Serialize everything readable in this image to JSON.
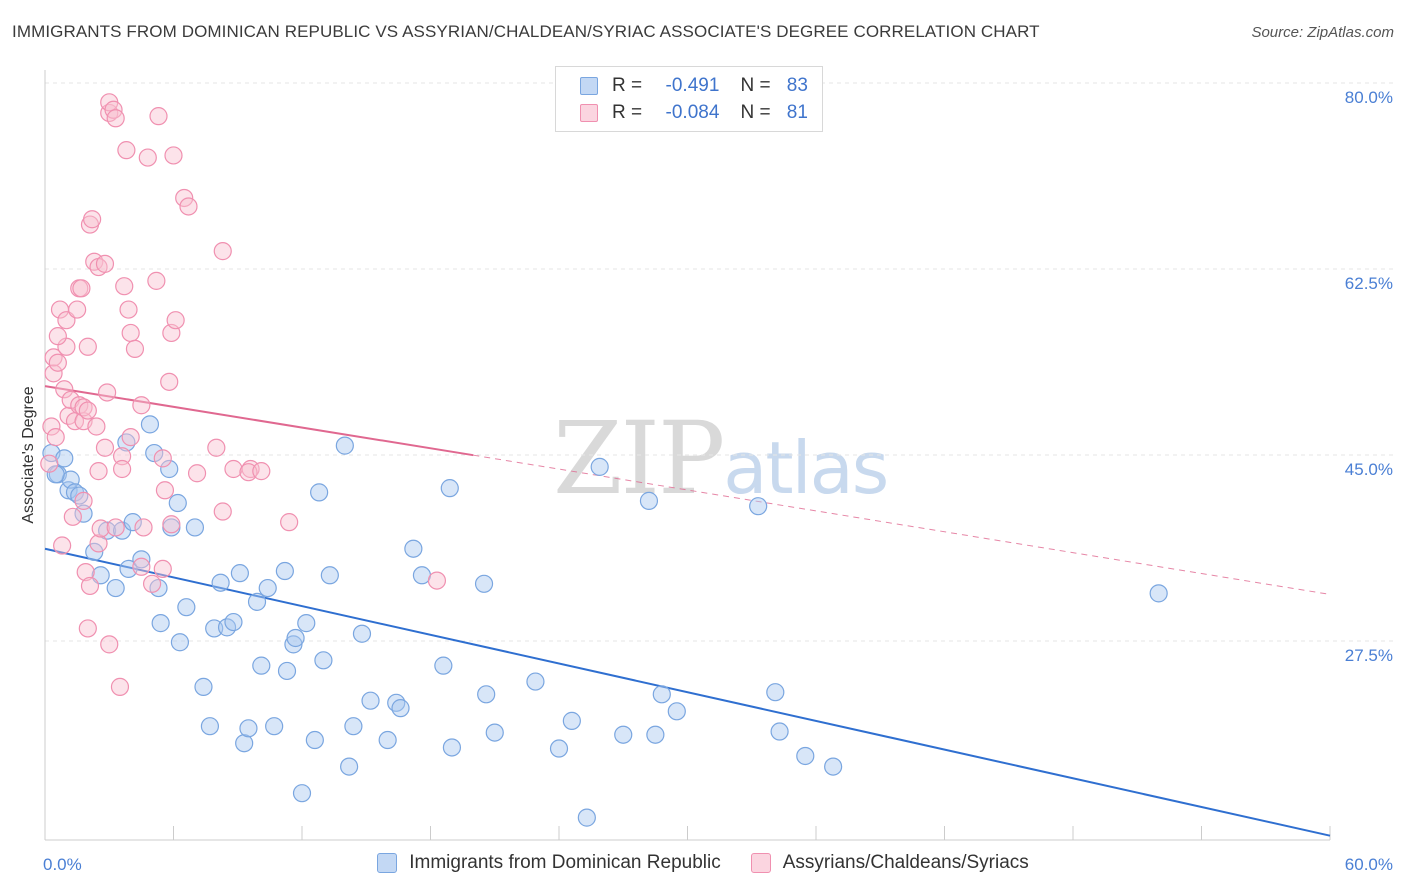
{
  "header": {
    "title": "IMMIGRANTS FROM DOMINICAN REPUBLIC VS ASSYRIAN/CHALDEAN/SYRIAC ASSOCIATE'S DEGREE CORRELATION CHART",
    "source": "Source: ZipAtlas.com"
  },
  "watermark": {
    "zip": "ZIP",
    "atlas": "atlas"
  },
  "legend": {
    "rows": [
      {
        "r_label": "R =",
        "r_value": "-0.491",
        "n_label": "N =",
        "n_value": "83",
        "color": "#a8c8f0",
        "border": "#7aa6e0"
      },
      {
        "r_label": "R =",
        "r_value": "-0.084",
        "n_label": "N =",
        "n_value": "81",
        "color": "#f8c0d0",
        "border": "#f090b0"
      }
    ]
  },
  "bottom_legend": {
    "series1": "Immigrants from Dominican Republic",
    "series2": "Assyrians/Chaldeans/Syriacs"
  },
  "chart_data": {
    "type": "scatter",
    "title": "IMMIGRANTS FROM DOMINICAN REPUBLIC VS ASSYRIAN/CHALDEAN/SYRIAC ASSOCIATE'S DEGREE CORRELATION CHART",
    "xlabel": "",
    "ylabel": "Associate's Degree",
    "xlim": [
      0,
      60
    ],
    "ylim": [
      10,
      82
    ],
    "x_ticks": [
      "0.0%",
      "60.0%"
    ],
    "y_ticks": [
      {
        "value": 80,
        "label": "80.0%"
      },
      {
        "value": 62.5,
        "label": "62.5%"
      },
      {
        "value": 45,
        "label": "45.0%"
      },
      {
        "value": 27.5,
        "label": "27.5%"
      }
    ],
    "grid": true,
    "legend_position": "top-center",
    "series": [
      {
        "name": "Immigrants from Dominican Republic",
        "color": "#7aa6e0",
        "fill": "#a8c8f0",
        "R": -0.491,
        "N": 83,
        "trend": {
          "x": [
            0,
            60
          ],
          "y": [
            37.5,
            10.5
          ],
          "style": "solid",
          "color": "#2f6fd0"
        },
        "points": [
          [
            0.3,
            46.5
          ],
          [
            0.6,
            44.5
          ],
          [
            0.9,
            46
          ],
          [
            1.1,
            43
          ],
          [
            1.2,
            44
          ],
          [
            1.4,
            42.8
          ],
          [
            1.6,
            42.5
          ],
          [
            1.8,
            40.8
          ],
          [
            2.3,
            37.2
          ],
          [
            2.6,
            35
          ],
          [
            2.9,
            39.2
          ],
          [
            3.3,
            33.8
          ],
          [
            3.6,
            39.2
          ],
          [
            3.8,
            47.5
          ],
          [
            3.9,
            35.6
          ],
          [
            4.1,
            40
          ],
          [
            4.5,
            36.5
          ],
          [
            4.9,
            49.2
          ],
          [
            5.1,
            46.5
          ],
          [
            5.3,
            33.8
          ],
          [
            5.4,
            30.5
          ],
          [
            5.8,
            45
          ],
          [
            5.9,
            39.5
          ],
          [
            6.2,
            41.8
          ],
          [
            6.3,
            28.7
          ],
          [
            6.6,
            32
          ],
          [
            7.0,
            39.5
          ],
          [
            7.4,
            24.5
          ],
          [
            7.7,
            20.8
          ],
          [
            7.9,
            30
          ],
          [
            8.2,
            34.3
          ],
          [
            8.5,
            30.1
          ],
          [
            8.8,
            30.6
          ],
          [
            9.1,
            35.2
          ],
          [
            9.3,
            19.2
          ],
          [
            9.5,
            20.6
          ],
          [
            9.9,
            32.5
          ],
          [
            10.1,
            26.5
          ],
          [
            10.4,
            33.8
          ],
          [
            10.7,
            20.8
          ],
          [
            11.2,
            35.4
          ],
          [
            11.3,
            26
          ],
          [
            11.6,
            28.5
          ],
          [
            11.7,
            29.1
          ],
          [
            12.0,
            14.5
          ],
          [
            12.2,
            30.5
          ],
          [
            12.6,
            19.5
          ],
          [
            12.8,
            42.8
          ],
          [
            13.0,
            27
          ],
          [
            13.3,
            35
          ],
          [
            14.0,
            47.2
          ],
          [
            14.2,
            17
          ],
          [
            14.4,
            20.8
          ],
          [
            14.8,
            29.5
          ],
          [
            15.2,
            23.2
          ],
          [
            16.0,
            19.5
          ],
          [
            16.4,
            23
          ],
          [
            16.6,
            22.5
          ],
          [
            17.2,
            37.5
          ],
          [
            17.6,
            35
          ],
          [
            18.6,
            26.5
          ],
          [
            18.9,
            43.2
          ],
          [
            19.0,
            18.8
          ],
          [
            20.5,
            34.2
          ],
          [
            20.6,
            23.8
          ],
          [
            21.0,
            20.2
          ],
          [
            22.9,
            25
          ],
          [
            24.0,
            18.7
          ],
          [
            24.6,
            21.3
          ],
          [
            25.3,
            12.2
          ],
          [
            25.9,
            45.2
          ],
          [
            27.0,
            20
          ],
          [
            28.2,
            42
          ],
          [
            28.5,
            20
          ],
          [
            28.8,
            23.8
          ],
          [
            29.5,
            22.2
          ],
          [
            33.3,
            41.5
          ],
          [
            34.1,
            24
          ],
          [
            34.3,
            20.3
          ],
          [
            35.5,
            18
          ],
          [
            36.8,
            17
          ],
          [
            52.0,
            33.3
          ],
          [
            0.5,
            44.5
          ]
        ]
      },
      {
        "name": "Assyrians/Chaldeans/Syriacs",
        "color": "#f090b0",
        "fill": "#f8c0d0",
        "R": -0.084,
        "N": 81,
        "trend": {
          "x": [
            0,
            20
          ],
          "y": [
            52.8,
            46.3
          ],
          "style": "solid",
          "color": "#e06890",
          "dashed_extension": {
            "x": [
              20,
              60
            ],
            "y": [
              46.3,
              33.2
            ]
          }
        },
        "points": [
          [
            0.2,
            45.5
          ],
          [
            0.3,
            49
          ],
          [
            0.4,
            54
          ],
          [
            0.4,
            55.5
          ],
          [
            0.5,
            48
          ],
          [
            0.6,
            55
          ],
          [
            0.7,
            60
          ],
          [
            0.8,
            37.8
          ],
          [
            0.9,
            52.5
          ],
          [
            1.0,
            59
          ],
          [
            1.0,
            56.5
          ],
          [
            1.1,
            50
          ],
          [
            1.2,
            51.5
          ],
          [
            1.3,
            40.5
          ],
          [
            1.4,
            49.5
          ],
          [
            1.5,
            60
          ],
          [
            1.6,
            51
          ],
          [
            1.6,
            62
          ],
          [
            1.7,
            62
          ],
          [
            1.8,
            49.5
          ],
          [
            1.8,
            50.8
          ],
          [
            1.8,
            42
          ],
          [
            1.9,
            35.3
          ],
          [
            2.0,
            50.5
          ],
          [
            2.0,
            30
          ],
          [
            2.0,
            56.5
          ],
          [
            2.1,
            68
          ],
          [
            2.1,
            34
          ],
          [
            2.2,
            68.5
          ],
          [
            2.3,
            64.5
          ],
          [
            2.4,
            49
          ],
          [
            2.5,
            64
          ],
          [
            2.5,
            44.8
          ],
          [
            2.5,
            38
          ],
          [
            2.6,
            39.4
          ],
          [
            2.8,
            64.3
          ],
          [
            2.8,
            47
          ],
          [
            2.9,
            52.2
          ],
          [
            3.0,
            78.5
          ],
          [
            3.0,
            79.5
          ],
          [
            3.0,
            28.5
          ],
          [
            3.2,
            78.8
          ],
          [
            3.3,
            78
          ],
          [
            3.3,
            39.5
          ],
          [
            3.5,
            24.5
          ],
          [
            3.6,
            46.2
          ],
          [
            3.6,
            45
          ],
          [
            3.7,
            62.2
          ],
          [
            3.8,
            75
          ],
          [
            3.9,
            60
          ],
          [
            4.0,
            48
          ],
          [
            4.0,
            57.8
          ],
          [
            4.2,
            56.3
          ],
          [
            4.5,
            35.8
          ],
          [
            4.5,
            51
          ],
          [
            4.6,
            39.5
          ],
          [
            4.8,
            74.3
          ],
          [
            5.0,
            34.2
          ],
          [
            5.2,
            62.7
          ],
          [
            5.3,
            78.2
          ],
          [
            5.5,
            35.6
          ],
          [
            5.5,
            46
          ],
          [
            5.6,
            43
          ],
          [
            5.8,
            53.2
          ],
          [
            5.9,
            39.8
          ],
          [
            5.9,
            57.8
          ],
          [
            6.0,
            74.5
          ],
          [
            6.1,
            59
          ],
          [
            6.5,
            70.5
          ],
          [
            6.7,
            69.7
          ],
          [
            7.1,
            44.6
          ],
          [
            8.0,
            47
          ],
          [
            8.3,
            41
          ],
          [
            8.3,
            65.5
          ],
          [
            8.8,
            45
          ],
          [
            9.6,
            45
          ],
          [
            9.5,
            44.7
          ],
          [
            10.1,
            44.8
          ],
          [
            11.4,
            40
          ],
          [
            18.3,
            34.5
          ],
          [
            0.6,
            57.5
          ]
        ]
      }
    ]
  }
}
